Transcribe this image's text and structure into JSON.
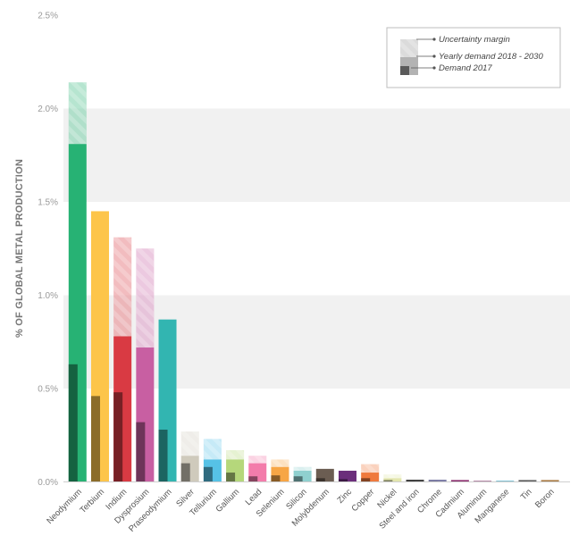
{
  "chart_data": {
    "type": "bar",
    "ylabel": "% OF GLOBAL METAL PRODUCTION",
    "ylim": [
      0,
      2.5
    ],
    "yticks": [
      "0.0%",
      "0.5%",
      "1.0%",
      "1.5%",
      "2.0%",
      "2.5%"
    ],
    "grid": "alternating horizontal bands",
    "legend_position": "top-right",
    "legend": {
      "uncertainty": "Uncertainty margin",
      "yearly": "Yearly demand 2018 - 2030",
      "demand2017": "Demand 2017"
    },
    "categories": [
      "Neodymium",
      "Terbium",
      "Indium",
      "Dysprosium",
      "Praseodymium",
      "Silver",
      "Tellurium",
      "Gallium",
      "Lead",
      "Selenium",
      "Silicon",
      "Molybdenum",
      "Zinc",
      "Copper",
      "Nickel",
      "Steel and iron",
      "Chrome",
      "Cadmium",
      "Aluminum",
      "Manganese",
      "Tin",
      "Boron"
    ],
    "series": [
      {
        "name": "Demand 2017",
        "values": [
          0.63,
          0.46,
          0.48,
          0.32,
          0.28,
          0.1,
          0.08,
          0.05,
          0.03,
          0.035,
          0.03,
          0.02,
          0.015,
          0.02,
          0.01,
          0.004,
          0.003,
          0.003,
          0.002,
          0.002,
          0.003,
          0.002
        ]
      },
      {
        "name": "Yearly demand 2018 - 2030",
        "values": [
          1.81,
          1.45,
          0.78,
          0.72,
          0.87,
          0.14,
          0.12,
          0.12,
          0.1,
          0.08,
          0.06,
          0.07,
          0.06,
          0.05,
          0.02,
          0.012,
          0.012,
          0.01,
          0.007,
          0.007,
          0.01,
          0.01
        ]
      },
      {
        "name": "Uncertainty margin",
        "values": [
          0.33,
          0,
          0.53,
          0.53,
          0,
          0.13,
          0.11,
          0.05,
          0.04,
          0.04,
          0.02,
          0,
          0,
          0.045,
          0.02,
          0,
          0,
          0,
          0,
          0,
          0,
          0
        ]
      }
    ],
    "colors": [
      "#27b274",
      "#fdc54a",
      "#d93a43",
      "#c85fa2",
      "#32b5b1",
      "#cfcabc",
      "#56c2e6",
      "#b5d77b",
      "#f37cab",
      "#f7a645",
      "#8fd0cf",
      "#6b5d52",
      "#6b2e7b",
      "#ef7a3e",
      "#e3e6ae",
      "#444444",
      "#7f7fa8",
      "#8c2d6e",
      "#b588a6",
      "#7fc2d4",
      "#5e5e5e",
      "#a87a43"
    ]
  }
}
